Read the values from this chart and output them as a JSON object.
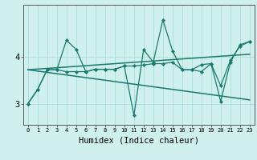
{
  "xlabel": "Humidex (Indice chaleur)",
  "bg_color": "#cff0ec",
  "line_color": "#1a7a6e",
  "grid_color": "#aaddd8",
  "x_values": [
    0,
    1,
    2,
    3,
    4,
    5,
    6,
    7,
    8,
    9,
    10,
    11,
    12,
    13,
    14,
    15,
    16,
    17,
    18,
    19,
    20,
    21,
    22,
    23
  ],
  "series1": [
    3.0,
    3.3,
    3.72,
    3.72,
    4.35,
    4.15,
    3.68,
    3.73,
    3.73,
    3.73,
    3.8,
    2.75,
    4.15,
    3.88,
    4.78,
    4.12,
    3.72,
    3.72,
    3.68,
    3.85,
    3.05,
    3.88,
    4.25,
    4.32
  ],
  "series2": [
    3.0,
    3.3,
    3.72,
    3.72,
    3.68,
    3.68,
    3.68,
    3.73,
    3.73,
    3.73,
    3.8,
    3.8,
    3.82,
    3.85,
    3.85,
    3.88,
    3.72,
    3.72,
    3.83,
    3.85,
    3.38,
    3.92,
    4.22,
    4.32
  ],
  "trend1_x": [
    0,
    23
  ],
  "trend1_y": [
    3.72,
    4.05
  ],
  "trend2_x": [
    0,
    23
  ],
  "trend2_y": [
    3.72,
    3.08
  ],
  "ylim": [
    2.55,
    5.1
  ],
  "yticks": [
    3,
    4
  ],
  "xlim": [
    -0.5,
    23.5
  ]
}
